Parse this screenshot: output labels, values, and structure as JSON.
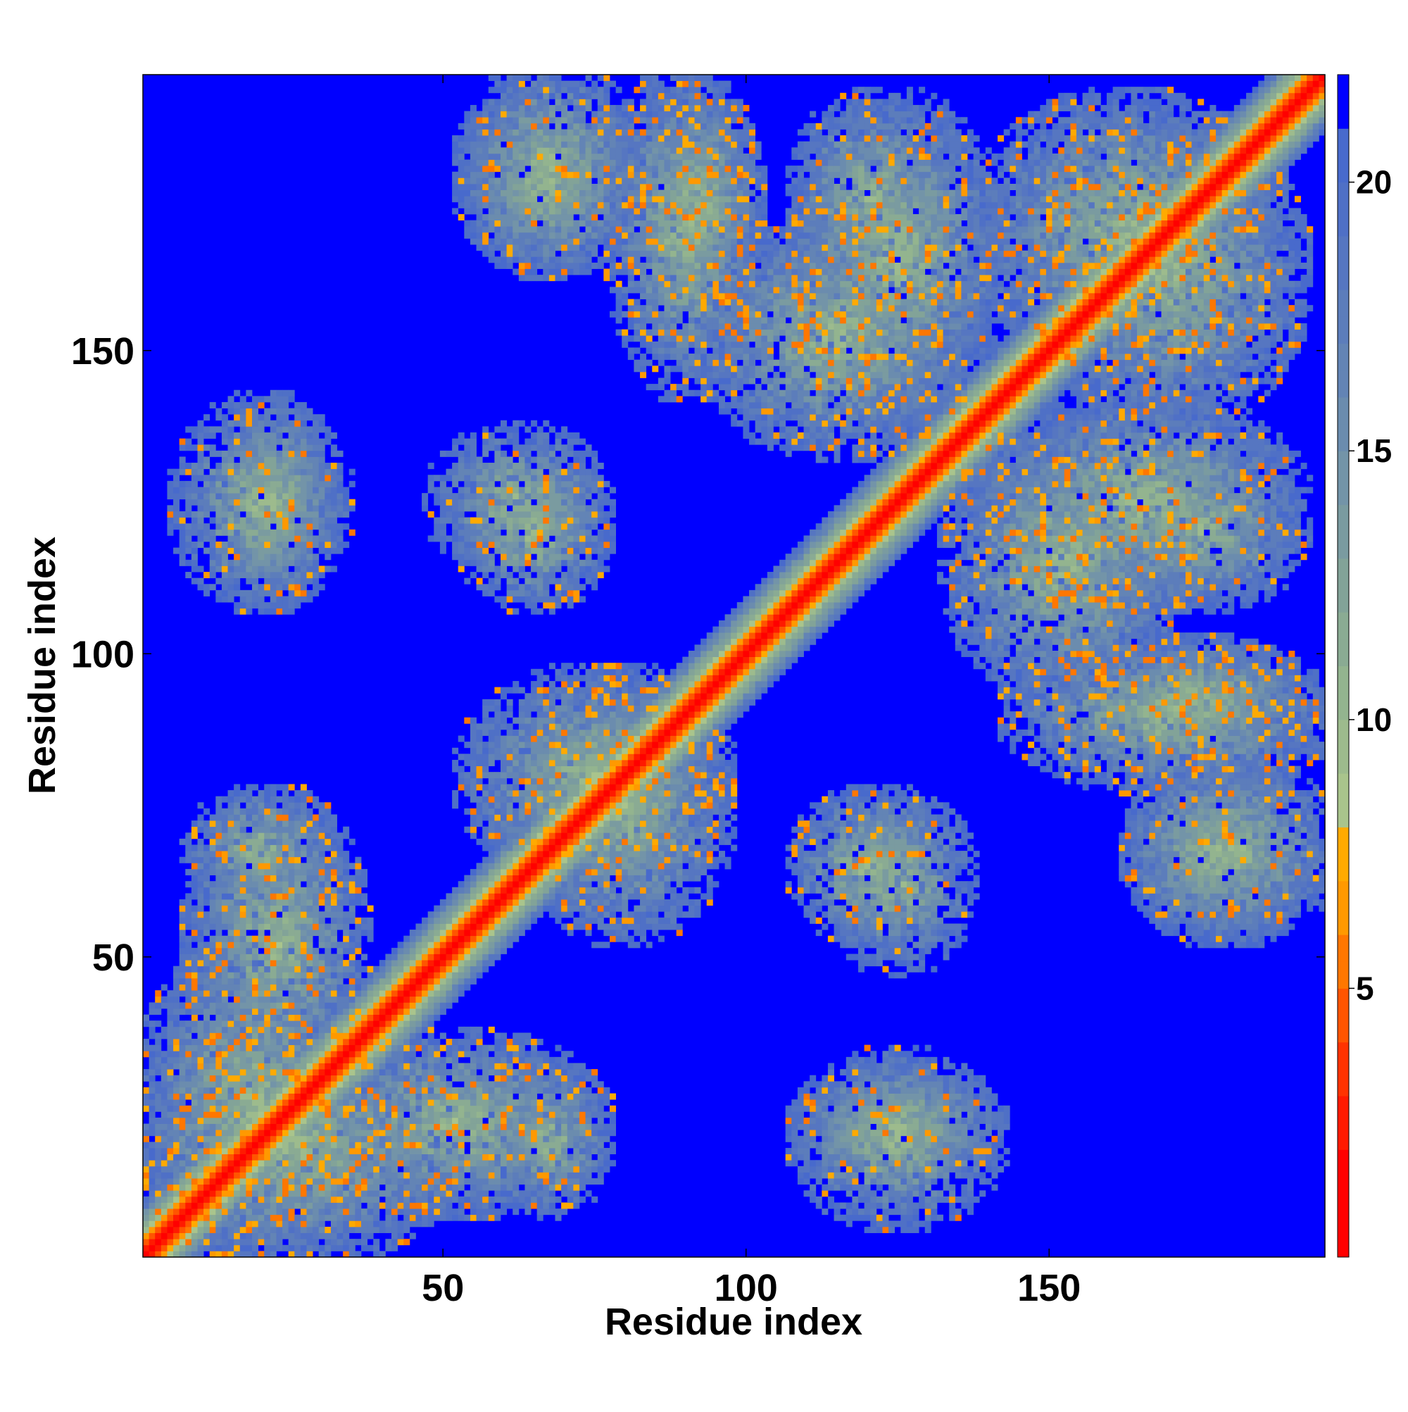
{
  "chart_data": {
    "type": "heatmap",
    "title": "",
    "xlabel": "Residue index",
    "ylabel": "Residue index",
    "n_residues": 195,
    "xlim": [
      1,
      195
    ],
    "ylim": [
      1,
      195
    ],
    "x_ticks": [
      50,
      100,
      150
    ],
    "y_ticks": [
      50,
      100,
      150
    ],
    "colorbar": {
      "ticks": [
        5,
        10,
        15,
        20
      ],
      "range": [
        0,
        22
      ],
      "colormap": [
        "#ff0000",
        "#ff2a00",
        "#ff5500",
        "#ff8000",
        "#ffaa00",
        "#8fb38f",
        "#9dbb8d",
        "#8eae92",
        "#7f9ea0",
        "#6f8fad",
        "#5f7fbb",
        "#0000ff"
      ],
      "levels": [
        1,
        2,
        3,
        4,
        5,
        6,
        7,
        8,
        9,
        10,
        11,
        12,
        13,
        14,
        15,
        16,
        17,
        18,
        19,
        20,
        21
      ],
      "above_max_color": "#0000ff"
    },
    "diagonal_band": {
      "distance_at_diagonal": 0,
      "width_residues": 6
    },
    "contact_blocks": [
      {
        "x": [
          2,
          35
        ],
        "y": [
          2,
          50
        ],
        "level": "dense"
      },
      {
        "x": [
          30,
          75
        ],
        "y": [
          10,
          35
        ],
        "level": "dense"
      },
      {
        "x": [
          10,
          30
        ],
        "y": [
          60,
          75
        ],
        "level": "medium"
      },
      {
        "x": [
          8,
          32
        ],
        "y": [
          110,
          140
        ],
        "level": "medium"
      },
      {
        "x": [
          50,
          75
        ],
        "y": [
          115,
          135
        ],
        "level": "medium"
      },
      {
        "x": [
          55,
          95
        ],
        "y": [
          65,
          95
        ],
        "level": "dense"
      },
      {
        "x": [
          55,
          80
        ],
        "y": [
          165,
          190
        ],
        "level": "medium"
      },
      {
        "x": [
          85,
          100
        ],
        "y": [
          160,
          190
        ],
        "level": "dense"
      },
      {
        "x": [
          110,
          130
        ],
        "y": [
          160,
          190
        ],
        "level": "medium"
      },
      {
        "x": [
          95,
          135
        ],
        "y": [
          135,
          170
        ],
        "level": "dense"
      },
      {
        "x": [
          110,
          130
        ],
        "y": [
          55,
          75
        ],
        "level": "medium"
      },
      {
        "x": [
          110,
          140
        ],
        "y": [
          15,
          30
        ],
        "level": "medium"
      },
      {
        "x": [
          140,
          190
        ],
        "y": [
          110,
          140
        ],
        "level": "dense"
      },
      {
        "x": [
          145,
          195
        ],
        "y": [
          80,
          100
        ],
        "level": "dense"
      },
      {
        "x": [
          150,
          190
        ],
        "y": [
          140,
          185
        ],
        "level": "dense"
      },
      {
        "x": [
          165,
          195
        ],
        "y": [
          55,
          80
        ],
        "level": "medium"
      }
    ]
  }
}
